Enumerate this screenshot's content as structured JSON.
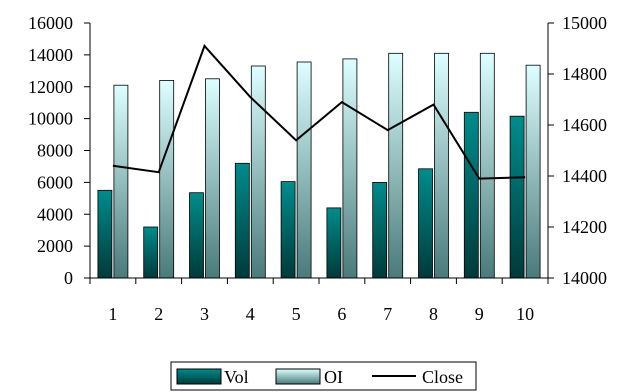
{
  "chart_data": {
    "type": "bar",
    "categories": [
      "1",
      "2",
      "3",
      "4",
      "5",
      "6",
      "7",
      "8",
      "9",
      "10"
    ],
    "series": [
      {
        "name": "Vol",
        "type": "bar",
        "axis": "left",
        "colors": {
          "top": "#008c8c",
          "bottom": "#003a3a"
        },
        "values": [
          5500,
          3200,
          5350,
          7200,
          6050,
          4400,
          6000,
          6850,
          10400,
          10150
        ]
      },
      {
        "name": "OI",
        "type": "bar",
        "axis": "left",
        "colors": {
          "top": "#ddffff",
          "bottom": "#4a7a7a"
        },
        "values": [
          12100,
          12400,
          12500,
          13300,
          13550,
          13750,
          14100,
          14100,
          14100,
          13350
        ]
      },
      {
        "name": "Close",
        "type": "line",
        "axis": "right",
        "colors": {
          "line": "#000000"
        },
        "values": [
          14440,
          14415,
          14910,
          14710,
          14540,
          14690,
          14580,
          14680,
          14390,
          14395
        ]
      }
    ],
    "y_left": {
      "min": 0,
      "max": 16000,
      "ticks": [
        "0",
        "2000",
        "4000",
        "6000",
        "8000",
        "10000",
        "12000",
        "14000",
        "16000"
      ]
    },
    "y_right": {
      "min": 14000,
      "max": 15000,
      "ticks": [
        "14000",
        "14200",
        "14400",
        "14600",
        "14800",
        "15000"
      ]
    },
    "grid": false,
    "legend_position": "bottom"
  }
}
